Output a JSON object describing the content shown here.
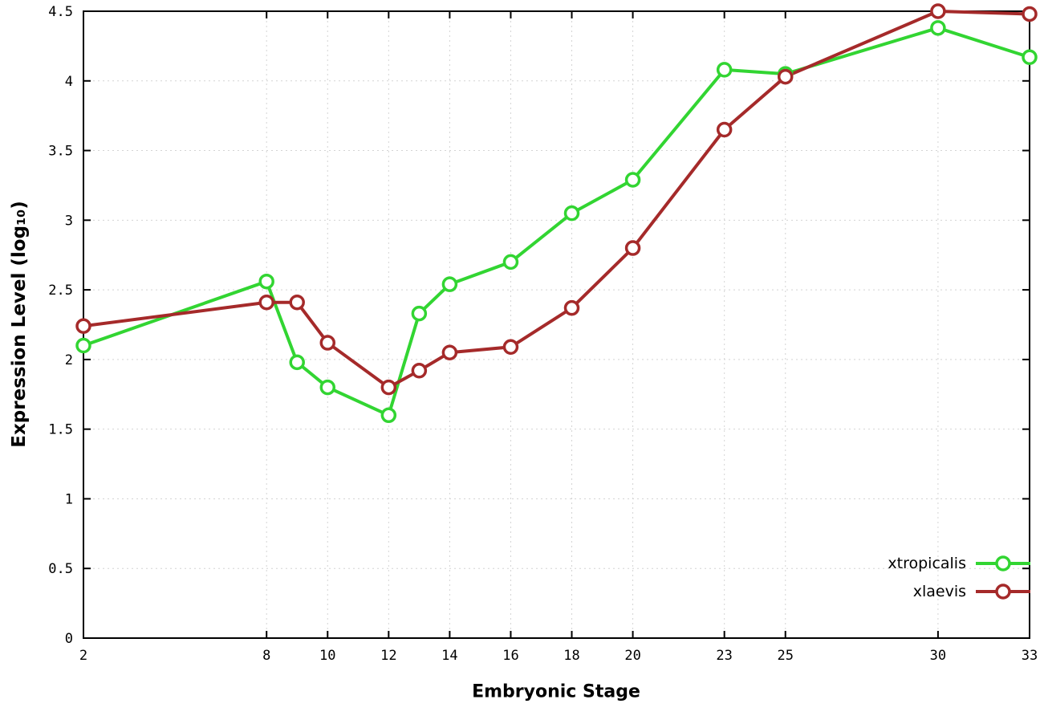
{
  "chart_data": {
    "type": "line",
    "x": [
      2,
      8,
      9,
      10,
      12,
      13,
      14,
      16,
      18,
      20,
      23,
      25,
      30,
      33
    ],
    "series": [
      {
        "name": "xtropicalis",
        "color": "#32d532",
        "values": [
          2.1,
          2.56,
          1.98,
          1.8,
          1.6,
          2.33,
          2.54,
          2.7,
          3.05,
          3.29,
          4.08,
          4.05,
          4.38,
          4.17
        ]
      },
      {
        "name": "xlaevis",
        "color": "#a52a2a",
        "values": [
          2.24,
          2.41,
          2.41,
          2.12,
          1.8,
          1.92,
          2.05,
          2.09,
          2.37,
          2.8,
          3.65,
          4.03,
          4.5,
          4.48
        ]
      }
    ],
    "title": "",
    "xlabel": "Embryonic Stage",
    "ylabel": "Expression Level (log₁₀)",
    "xlim": [
      2,
      33
    ],
    "ylim": [
      0,
      4.5
    ],
    "xticks": {
      "values": [
        2,
        8,
        10,
        12,
        14,
        16,
        18,
        20,
        23,
        25,
        30,
        33
      ],
      "labels": [
        "2",
        "8",
        "10",
        "12",
        "14",
        "16",
        "18",
        "20",
        "23",
        "25",
        "30",
        "33"
      ]
    },
    "yticks": {
      "values": [
        0,
        0.5,
        1,
        1.5,
        2,
        2.5,
        3,
        3.5,
        4,
        4.5
      ],
      "labels": [
        "0",
        "0.5",
        "1",
        "1.5",
        "2",
        "2.5",
        "3",
        "3.5",
        "4",
        "4.5"
      ]
    },
    "grid": true,
    "legend_position": "bottom-right-inside",
    "marker": "open-circle",
    "axis_color": "#000000",
    "grid_color": "#d4d4d4",
    "background": "#ffffff"
  }
}
